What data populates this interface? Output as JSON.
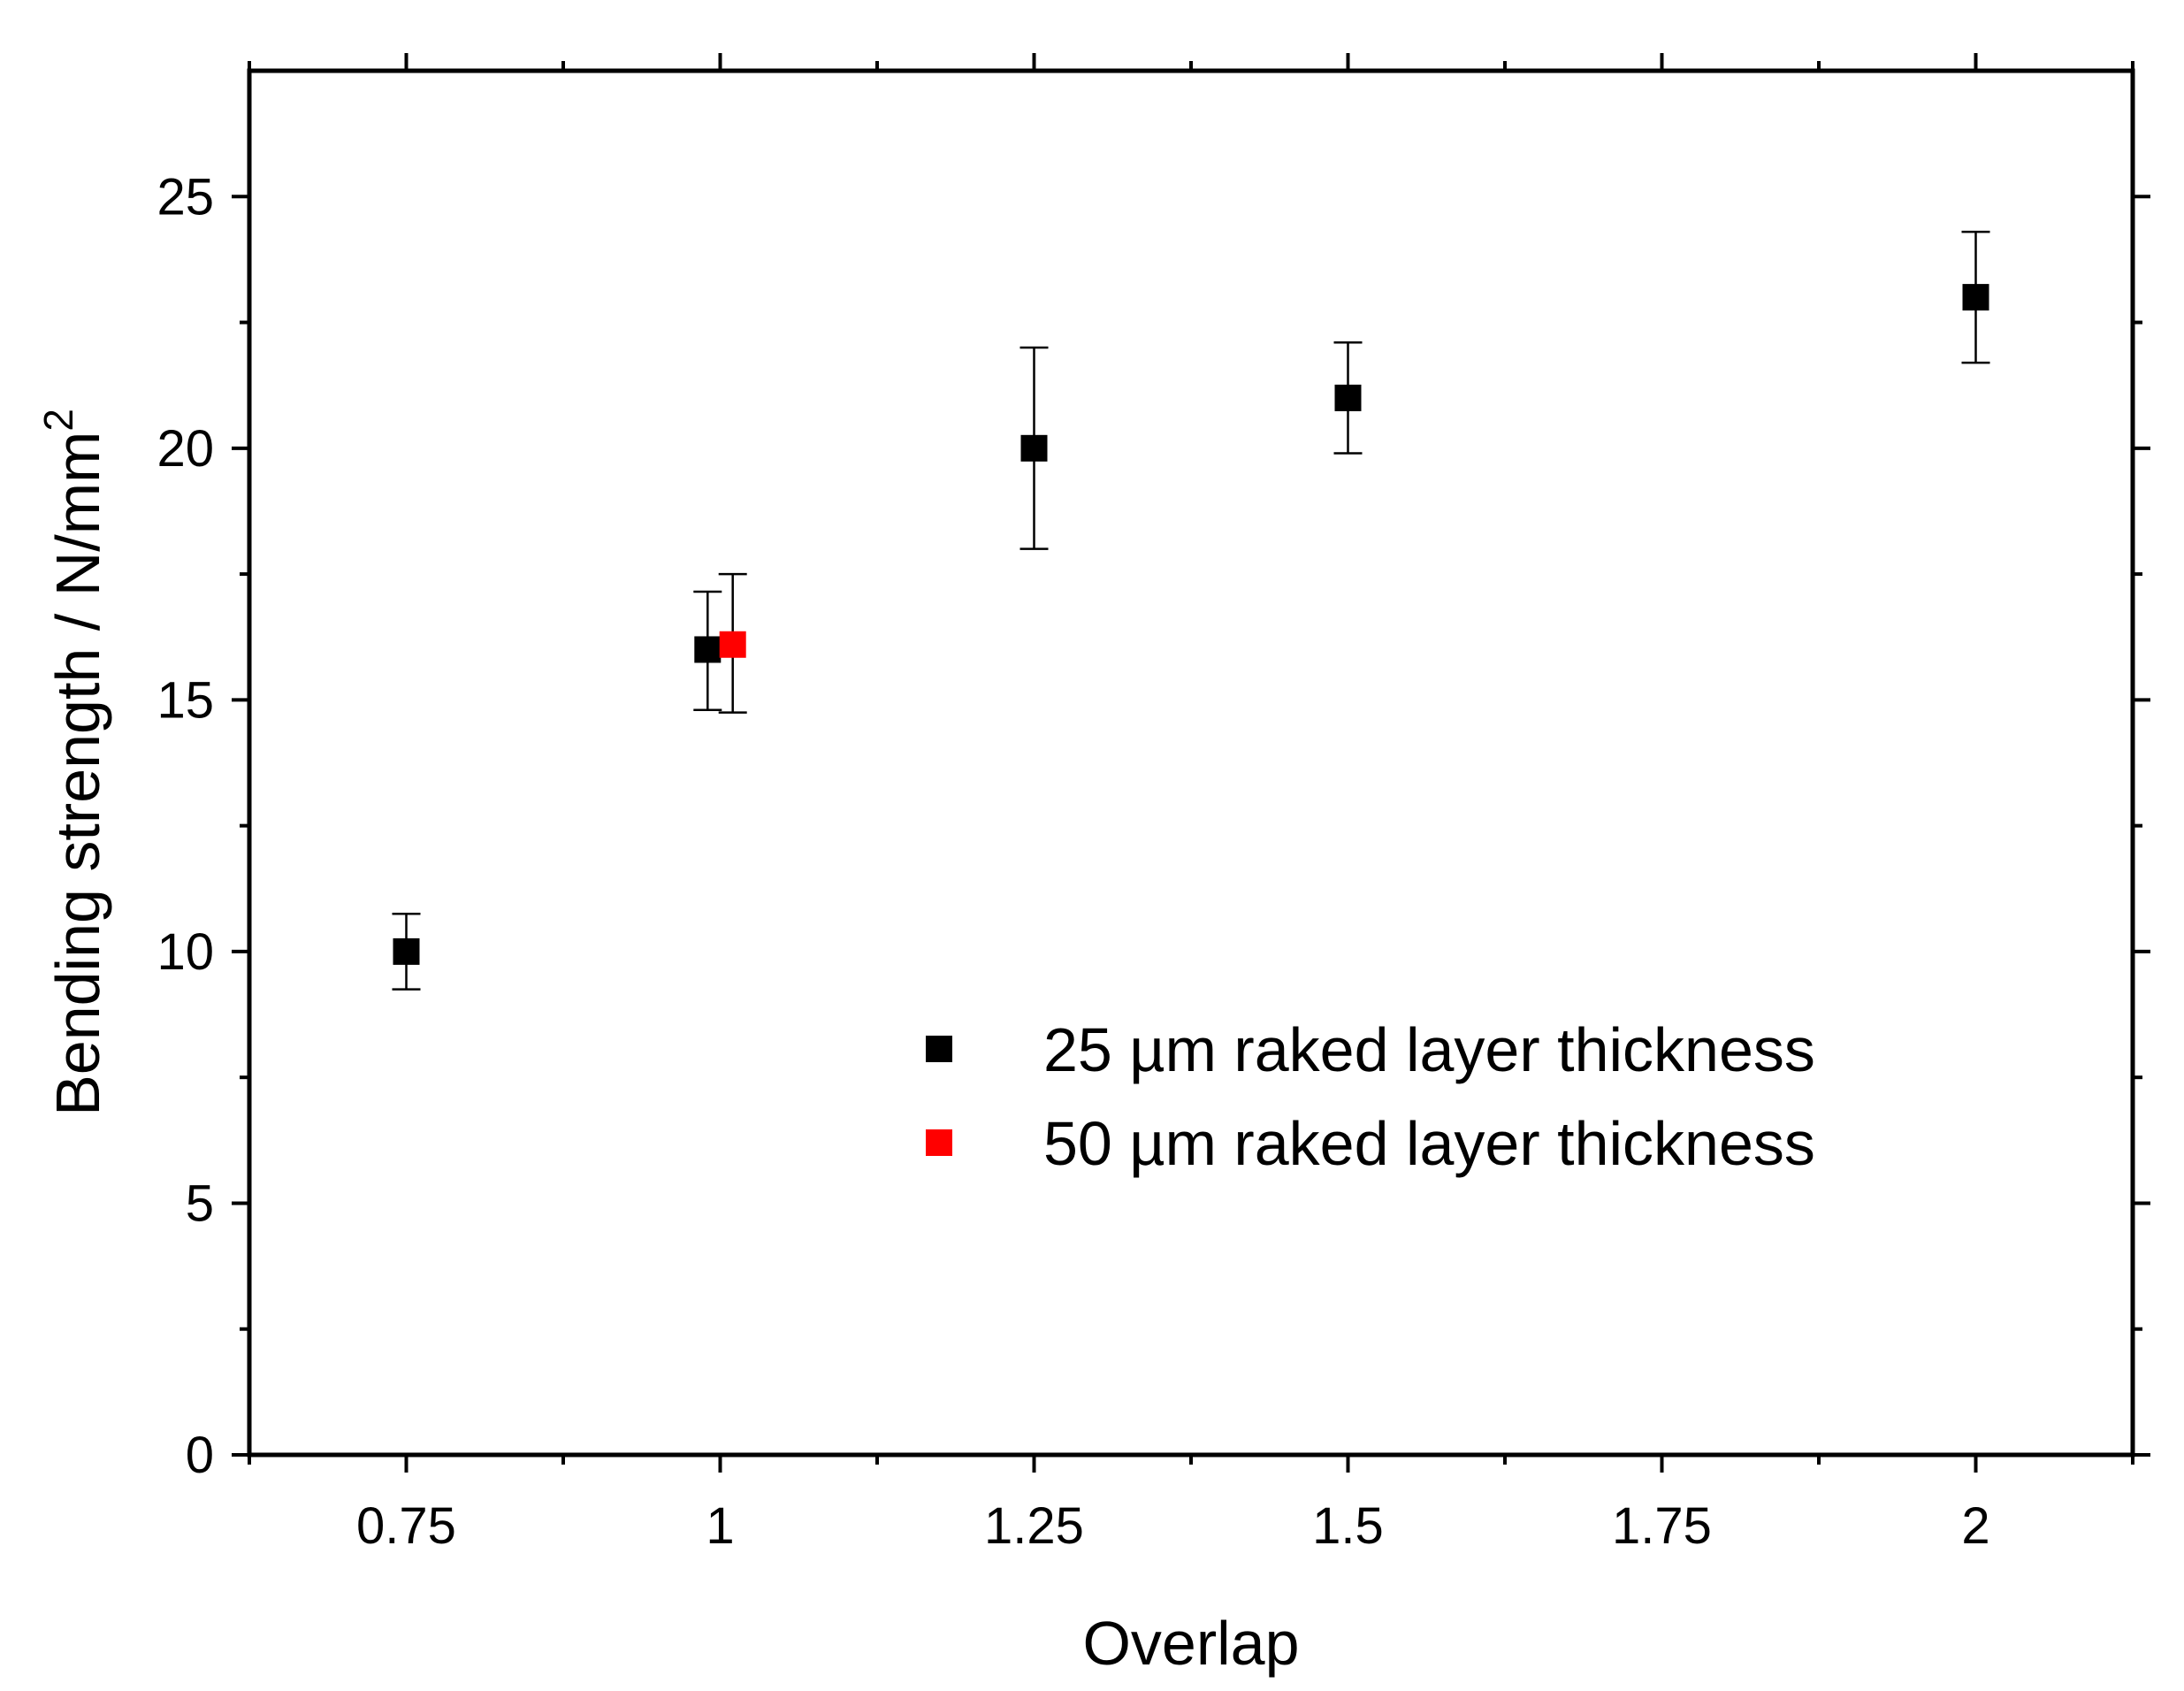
{
  "chart_data": {
    "type": "scatter",
    "title": "",
    "xlabel": "Overlap",
    "ylabel": "Bending strength / N/mm",
    "ylabel_superscript": "2",
    "xlim": [
      0.625,
      2.125
    ],
    "ylim": [
      0,
      27.5
    ],
    "x_ticks": [
      {
        "value": 0.75,
        "label": "0.75"
      },
      {
        "value": 1,
        "label": "1"
      },
      {
        "value": 1.25,
        "label": "1.25"
      },
      {
        "value": 1.5,
        "label": "1.5"
      },
      {
        "value": 1.75,
        "label": "1.75"
      },
      {
        "value": 2,
        "label": "2"
      }
    ],
    "y_ticks": [
      {
        "value": 0,
        "label": "0"
      },
      {
        "value": 5,
        "label": "5"
      },
      {
        "value": 10,
        "label": "10"
      },
      {
        "value": 15,
        "label": "15"
      },
      {
        "value": 20,
        "label": "20"
      },
      {
        "value": 25,
        "label": "25"
      }
    ],
    "grid": false,
    "legend_position": "lower-right",
    "series": [
      {
        "name": "25 µm raked layer thickness",
        "color": "#000000",
        "marker": "square",
        "points": [
          {
            "x": 0.75,
            "y": 10.0,
            "err_low": 9.25,
            "err_high": 10.75
          },
          {
            "x": 0.99,
            "y": 16.0,
            "err_low": 14.8,
            "err_high": 17.15
          },
          {
            "x": 1.25,
            "y": 20.0,
            "err_low": 18.0,
            "err_high": 22.0
          },
          {
            "x": 1.5,
            "y": 21.0,
            "err_low": 19.9,
            "err_high": 22.1
          },
          {
            "x": 2.0,
            "y": 23.0,
            "err_low": 21.7,
            "err_high": 24.3
          }
        ]
      },
      {
        "name": "50 µm raked layer thickness",
        "color": "#ff0000",
        "marker": "square",
        "points": [
          {
            "x": 1.01,
            "y": 16.1,
            "err_low": 14.75,
            "err_high": 17.5
          }
        ]
      }
    ]
  }
}
